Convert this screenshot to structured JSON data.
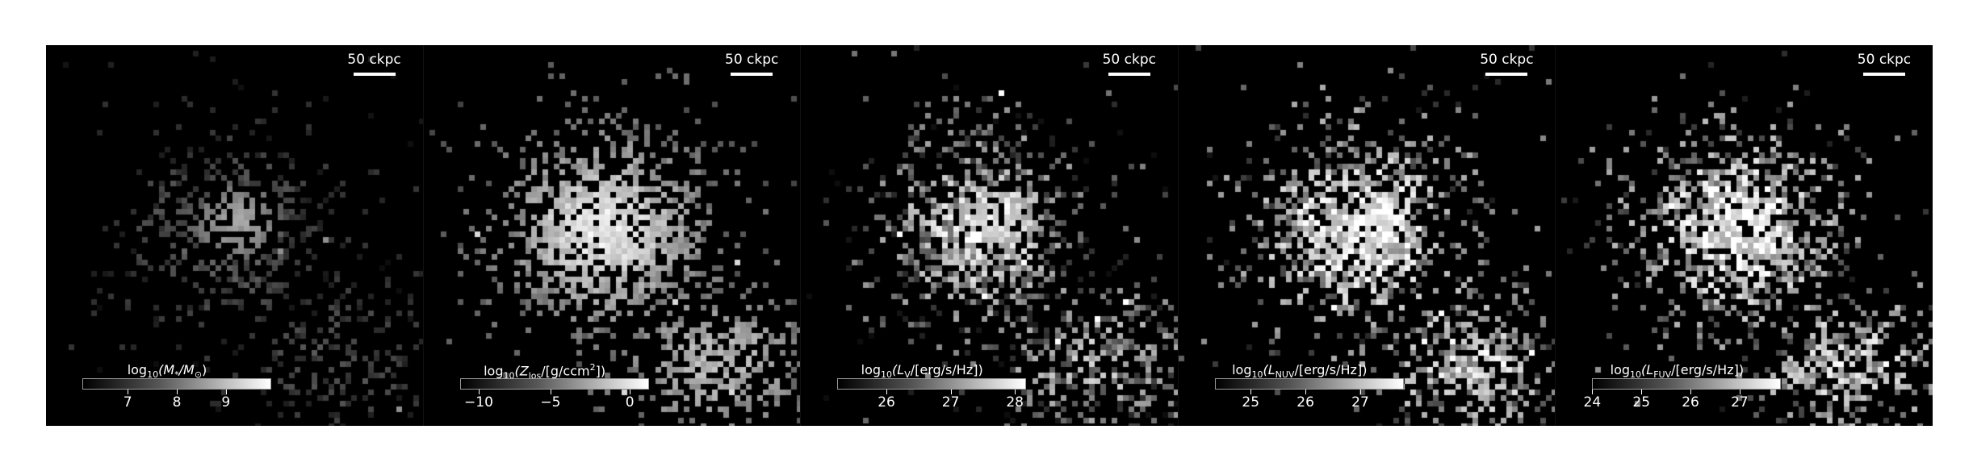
{
  "panels": [
    {
      "scale_label": "50 ckpc",
      "colorbar": {
        "label_prefix": "log",
        "label_sub": "10",
        "label_body": "(M",
        "label_sub2": "*",
        "label_tail": "/M",
        "label_sub3": "⊙",
        "label_end": ")",
        "ticks": [
          "7",
          "8",
          "9"
        ],
        "tick_fracs": [
          0.24,
          0.5,
          0.76
        ]
      }
    },
    {
      "scale_label": "50 ckpc",
      "colorbar": {
        "label_prefix": "log",
        "label_sub": "10",
        "label_body": "(Z",
        "label_sub2": "los",
        "label_tail": "/[g/ccm",
        "label_sub3": "2",
        "label_end": "])",
        "ticks": [
          "−10",
          "−5",
          "0"
        ],
        "tick_fracs": [
          0.1,
          0.48,
          0.9
        ]
      }
    },
    {
      "scale_label": "50 ckpc",
      "colorbar": {
        "label_prefix": "log",
        "label_sub": "10",
        "label_body": "(L",
        "label_sub2": "V",
        "label_tail": "/[erg/s/Hz]",
        "label_sub3": "",
        "label_end": ")",
        "ticks": [
          "26",
          "27",
          "28"
        ],
        "tick_fracs": [
          0.26,
          0.6,
          0.94
        ]
      }
    },
    {
      "scale_label": "50 ckpc",
      "colorbar": {
        "label_prefix": "log",
        "label_sub": "10",
        "label_body": "(L",
        "label_sub2": "NUV",
        "label_tail": "/[erg/s/Hz]",
        "label_sub3": "",
        "label_end": ")",
        "ticks": [
          "25",
          "26",
          "27"
        ],
        "tick_fracs": [
          0.19,
          0.48,
          0.77
        ]
      }
    },
    {
      "scale_label": "50 ckpc",
      "colorbar": {
        "label_prefix": "log",
        "label_sub": "10",
        "label_body": "(L",
        "label_sub2": "FUV",
        "label_tail": "/[erg/s/Hz]",
        "label_sub3": "",
        "label_end": ")",
        "ticks": [
          "24",
          "25",
          "26",
          "27"
        ],
        "tick_fracs": [
          0.0,
          0.26,
          0.52,
          0.78
        ]
      }
    }
  ],
  "colors": {
    "background": "#000000",
    "foreground": "#ffffff",
    "page": "#ffffff"
  }
}
